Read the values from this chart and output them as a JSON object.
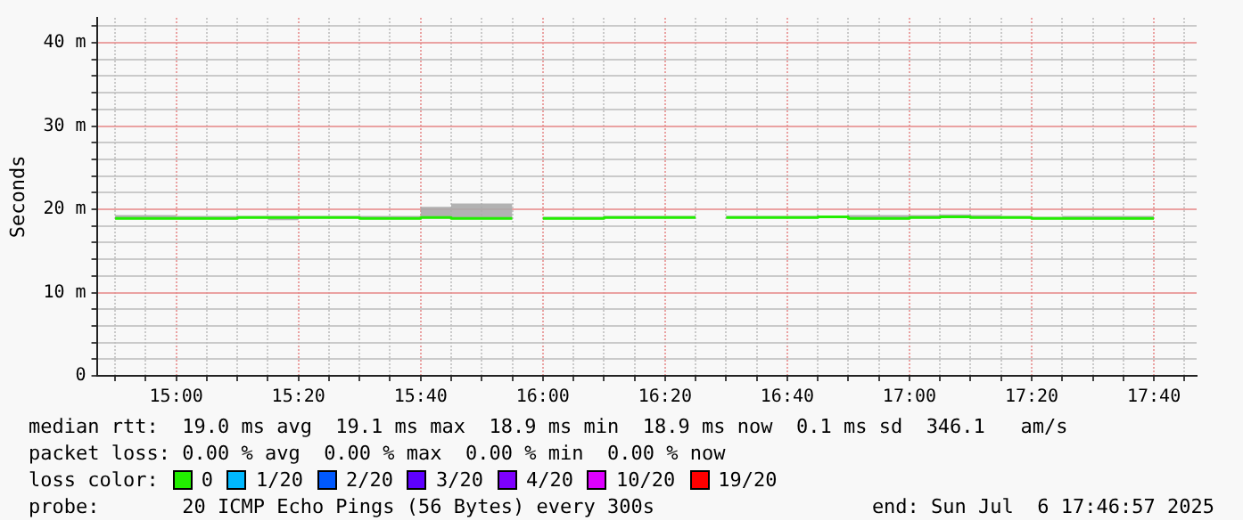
{
  "chart_data": {
    "type": "step",
    "ylabel": "Seconds",
    "legend_title": "loss color:",
    "legend": "bottom",
    "grid": true,
    "annotations": [
      "median rtt:  19.0 ms avg  19.1 ms max  18.9 ms min  18.9 ms now  0.1 ms sd  346.1   am/s",
      "packet loss: 0.00 % avg  0.00 % max  0.00 % min  0.00 % now",
      "probe:       20 ICMP Echo Pings (56 Bytes) every 300s",
      "end: Sun Jul  6 17:46:57 2025"
    ],
    "xlim": [
      14.7833,
      17.7833
    ],
    "xticks": [
      {
        "value": 14.8333,
        "label": null
      },
      {
        "value": 14.9167,
        "label": null
      },
      {
        "value": 15,
        "label": "15:00"
      },
      {
        "value": 15.0833,
        "label": null
      },
      {
        "value": 15.1667,
        "label": null
      },
      {
        "value": 15.25,
        "label": null
      },
      {
        "value": 15.3333,
        "label": "15:20"
      },
      {
        "value": 15.4167,
        "label": null
      },
      {
        "value": 15.5,
        "label": null
      },
      {
        "value": 15.5833,
        "label": null
      },
      {
        "value": 15.6667,
        "label": "15:40"
      },
      {
        "value": 15.75,
        "label": null
      },
      {
        "value": 15.8333,
        "label": null
      },
      {
        "value": 15.9167,
        "label": null
      },
      {
        "value": 16,
        "label": "16:00"
      },
      {
        "value": 16.0833,
        "label": null
      },
      {
        "value": 16.1667,
        "label": null
      },
      {
        "value": 16.25,
        "label": null
      },
      {
        "value": 16.3333,
        "label": "16:20"
      },
      {
        "value": 16.4167,
        "label": null
      },
      {
        "value": 16.5,
        "label": null
      },
      {
        "value": 16.5833,
        "label": null
      },
      {
        "value": 16.6667,
        "label": "16:40"
      },
      {
        "value": 16.75,
        "label": null
      },
      {
        "value": 16.8333,
        "label": null
      },
      {
        "value": 16.9167,
        "label": null
      },
      {
        "value": 17,
        "label": "17:00"
      },
      {
        "value": 17.0833,
        "label": null
      },
      {
        "value": 17.1667,
        "label": null
      },
      {
        "value": 17.25,
        "label": null
      },
      {
        "value": 17.3333,
        "label": "17:20"
      },
      {
        "value": 17.4167,
        "label": null
      },
      {
        "value": 17.5,
        "label": null
      },
      {
        "value": 17.5833,
        "label": null
      },
      {
        "value": 17.6667,
        "label": "17:40"
      },
      {
        "value": 17.75,
        "label": null
      }
    ],
    "ylim": [
      0,
      43
    ],
    "yticks": [
      0,
      {
        "value": 2,
        "label": null
      },
      {
        "value": 4,
        "label": null
      },
      {
        "value": 6,
        "label": null
      },
      {
        "value": 8,
        "label": null
      },
      {
        "value": 10,
        "label": "10 m"
      },
      {
        "value": 12,
        "label": null
      },
      {
        "value": 14,
        "label": null
      },
      {
        "value": 16,
        "label": null
      },
      {
        "value": 18,
        "label": null
      },
      {
        "value": 20,
        "label": "20 m"
      },
      {
        "value": 22,
        "label": null
      },
      {
        "value": 24,
        "label": null
      },
      {
        "value": 26,
        "label": null
      },
      {
        "value": 28,
        "label": null
      },
      {
        "value": 30,
        "label": "30 m"
      },
      {
        "value": 32,
        "label": null
      },
      {
        "value": 34,
        "label": null
      },
      {
        "value": 36,
        "label": null
      },
      {
        "value": 38,
        "label": null
      },
      {
        "value": 40,
        "label": "40 m"
      },
      {
        "value": 42,
        "label": null
      }
    ],
    "x": [
      14.8333,
      14.9167,
      15,
      15.0833,
      15.1667,
      15.25,
      15.3333,
      15.4167,
      15.5,
      15.5833,
      15.6667,
      15.75,
      15.8333,
      15.9167,
      16,
      16.0833,
      16.1667,
      16.25,
      16.3333,
      16.4167,
      16.5,
      16.5833,
      16.6667,
      16.75,
      16.8333,
      16.9167,
      17,
      17.0833,
      17.1667,
      17.25,
      17.3333,
      17.4167,
      17.5,
      17.5833,
      17.6667
    ],
    "series": [
      {
        "name": "0",
        "color": "#22ee00",
        "values": [
          18.9,
          18.9,
          18.9,
          18.9,
          19.0,
          19.0,
          19.0,
          19.0,
          18.9,
          18.9,
          19.0,
          18.9,
          18.9,
          null,
          18.9,
          18.9,
          19.0,
          19.0,
          19.0,
          null,
          19.0,
          19.0,
          19.0,
          19.1,
          18.9,
          18.9,
          19.0,
          19.1,
          19.0,
          19.0,
          18.9,
          18.9,
          18.9,
          18.9,
          18.9
        ],
        "upper": [
          19.3,
          19.3,
          19.2,
          19.2,
          19.2,
          19.2,
          19.2,
          19.2,
          19.2,
          19.2,
          20.3,
          20.7,
          20.7,
          null,
          19.1,
          19.1,
          19.2,
          19.2,
          19.2,
          null,
          19.2,
          19.2,
          19.2,
          19.2,
          19.3,
          19.3,
          19.3,
          19.4,
          19.3,
          19.2,
          19.1,
          19.2,
          19.2,
          19.2,
          19.2
        ],
        "lower": [
          18.8,
          18.8,
          18.8,
          18.8,
          18.9,
          18.7,
          18.9,
          18.9,
          18.8,
          18.8,
          18.9,
          18.8,
          18.8,
          null,
          18.8,
          18.8,
          18.9,
          18.9,
          18.9,
          null,
          18.9,
          18.9,
          18.9,
          19.0,
          18.8,
          18.8,
          18.9,
          19.0,
          18.9,
          18.9,
          18.8,
          18.8,
          18.8,
          18.8,
          18.8
        ]
      },
      {
        "name": "1/20",
        "color": "#00b8ff",
        "values": [
          null,
          null,
          null,
          null,
          null,
          null,
          null,
          null,
          null,
          null,
          null,
          null,
          null,
          null,
          null,
          null,
          null,
          null,
          null,
          null,
          null,
          null,
          null,
          null,
          null,
          null,
          null,
          null,
          null,
          null,
          null,
          null,
          null,
          null,
          null
        ]
      },
      {
        "name": "2/20",
        "color": "#0059ff",
        "values": [
          null,
          null,
          null,
          null,
          null,
          null,
          null,
          null,
          null,
          null,
          null,
          null,
          null,
          null,
          null,
          null,
          null,
          null,
          null,
          null,
          null,
          null,
          null,
          null,
          null,
          null,
          null,
          null,
          null,
          null,
          null,
          null,
          null,
          null,
          null
        ]
      },
      {
        "name": "3/20",
        "color": "#5e00ff",
        "values": [
          null,
          null,
          null,
          null,
          null,
          null,
          null,
          null,
          null,
          null,
          null,
          null,
          null,
          null,
          null,
          null,
          null,
          null,
          null,
          null,
          null,
          null,
          null,
          null,
          null,
          null,
          null,
          null,
          null,
          null,
          null,
          null,
          null,
          null,
          null
        ]
      },
      {
        "name": "4/20",
        "color": "#7e00ff",
        "values": [
          null,
          null,
          null,
          null,
          null,
          null,
          null,
          null,
          null,
          null,
          null,
          null,
          null,
          null,
          null,
          null,
          null,
          null,
          null,
          null,
          null,
          null,
          null,
          null,
          null,
          null,
          null,
          null,
          null,
          null,
          null,
          null,
          null,
          null,
          null
        ]
      },
      {
        "name": "10/20",
        "color": "#dd00ff",
        "values": [
          null,
          null,
          null,
          null,
          null,
          null,
          null,
          null,
          null,
          null,
          null,
          null,
          null,
          null,
          null,
          null,
          null,
          null,
          null,
          null,
          null,
          null,
          null,
          null,
          null,
          null,
          null,
          null,
          null,
          null,
          null,
          null,
          null,
          null,
          null
        ]
      },
      {
        "name": "19/20",
        "color": "#ff0000",
        "values": [
          null,
          null,
          null,
          null,
          null,
          null,
          null,
          null,
          null,
          null,
          null,
          null,
          null,
          null,
          null,
          null,
          null,
          null,
          null,
          null,
          null,
          null,
          null,
          null,
          null,
          null,
          null,
          null,
          null,
          null,
          null,
          null,
          null,
          null,
          null
        ]
      }
    ]
  }
}
